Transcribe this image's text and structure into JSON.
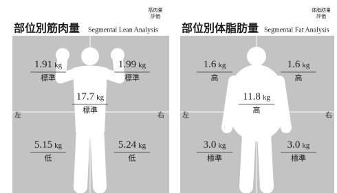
{
  "panels": [
    {
      "title": "部位別筋肉量",
      "subtitle": "Segmental Lean Analysis",
      "rating_header": [
        "筋肉量",
        "評価"
      ],
      "left_label": "左",
      "right_label": "右",
      "segments": [
        {
          "value": "1.91",
          "unit": "kg",
          "rating": "標準"
        },
        {
          "value": "1.99",
          "unit": "kg",
          "rating": "標準"
        },
        {
          "value": "17.7",
          "unit": "kg",
          "rating": "標準"
        },
        {
          "value": "5.15",
          "unit": "kg",
          "rating": "低"
        },
        {
          "value": "5.24",
          "unit": "kg",
          "rating": "低"
        }
      ]
    },
    {
      "title": "部位別体脂肪量",
      "subtitle": "Segmental Fat Analysis",
      "rating_header": [
        "体脂肪量",
        "評価"
      ],
      "left_label": "左",
      "right_label": "右",
      "segments": [
        {
          "value": "1.6",
          "unit": "kg",
          "rating": "高"
        },
        {
          "value": "1.6",
          "unit": "kg",
          "rating": "高"
        },
        {
          "value": "11.8",
          "unit": "kg",
          "rating": "高"
        },
        {
          "value": "3.0",
          "unit": "kg",
          "rating": "標準"
        },
        {
          "value": "3.0",
          "unit": "kg",
          "rating": "標準"
        }
      ]
    }
  ]
}
